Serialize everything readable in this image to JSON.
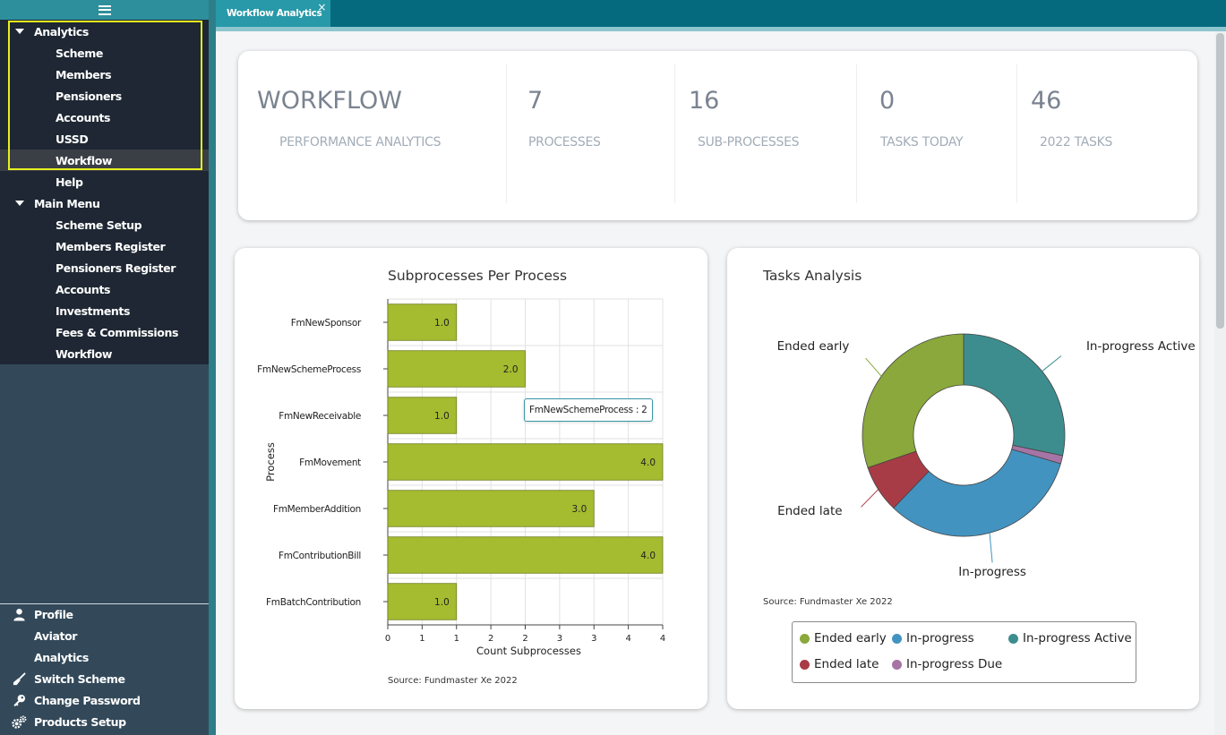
{
  "sidebar": {
    "analytics_group": "Analytics",
    "analytics_items": [
      "Scheme",
      "Members",
      "Pensioners",
      "Accounts",
      "USSD",
      "Workflow",
      "Help"
    ],
    "main_menu_group": "Main Menu",
    "main_menu_items": [
      "Scheme Setup",
      "Members Register",
      "Pensioners Register",
      "Accounts",
      "Investments",
      "Fees & Commissions",
      "Workflow"
    ],
    "bottom_items": [
      {
        "label": "Profile",
        "icon": "user-icon"
      },
      {
        "label": "Aviator",
        "icon": ""
      },
      {
        "label": "Analytics",
        "icon": ""
      },
      {
        "label": "Switch Scheme",
        "icon": "broom-icon"
      },
      {
        "label": "Change Password",
        "icon": "key-icon"
      },
      {
        "label": "Products Setup",
        "icon": "gears-icon"
      }
    ]
  },
  "tabs": [
    {
      "label": "Workflow Analytics",
      "close": "×"
    }
  ],
  "stats": {
    "title": "WORKFLOW",
    "subtitle": "PERFORMANCE ANALYTICS",
    "items": [
      {
        "value": "7",
        "label": "PROCESSES"
      },
      {
        "value": "16",
        "label": "SUB-PROCESSES"
      },
      {
        "value": "0",
        "label": "TASKS TODAY"
      },
      {
        "value": "46",
        "label": "2022 TASKS"
      }
    ]
  },
  "bar_chart": {
    "title": "Subprocesses Per Process",
    "source": "Source: Fundmaster Xe 2022",
    "tooltip": "FmNewSchemeProcess : 2",
    "bar_color": "#a5bb30"
  },
  "donut_chart": {
    "title": "Tasks Analysis",
    "source": "Source: Fundmaster Xe 2022"
  },
  "chart_data": [
    {
      "type": "bar",
      "orientation": "horizontal",
      "title": "Subprocesses Per Process",
      "xlabel": "Count Subprocesses",
      "ylabel": "Process",
      "categories": [
        "FmNewSponsor",
        "FmNewSchemeProcess",
        "FmNewReceivable",
        "FmMovement",
        "FmMemberAddition",
        "FmContributionBill",
        "FmBatchContribution"
      ],
      "values": [
        1,
        2,
        1,
        4,
        3,
        4,
        1
      ],
      "value_labels": [
        "1.0",
        "2.0",
        "1.0",
        "4.0",
        "3.0",
        "4.0",
        "1.0"
      ],
      "xlim": [
        0,
        4
      ],
      "xticks": [
        "0",
        "1",
        "1",
        "2",
        "2",
        "3",
        "3",
        "4",
        "4"
      ],
      "grid": true
    },
    {
      "type": "pie",
      "variant": "donut",
      "title": "Tasks Analysis",
      "slices": [
        {
          "name": "In-progress Active",
          "value": 13,
          "color": "#3d8d8e"
        },
        {
          "name": "In-progress Due",
          "value": 0.6,
          "color": "#a774a6"
        },
        {
          "name": "In-progress",
          "value": 15,
          "color": "#4393c0"
        },
        {
          "name": "Ended late",
          "value": 3.5,
          "color": "#a83c46"
        },
        {
          "name": "Ended early",
          "value": 13.9,
          "color": "#8aa83b"
        }
      ],
      "legend": [
        "Ended early",
        "In-progress",
        "In-progress Active",
        "Ended late",
        "In-progress Due"
      ],
      "legend_position": "bottom"
    }
  ]
}
